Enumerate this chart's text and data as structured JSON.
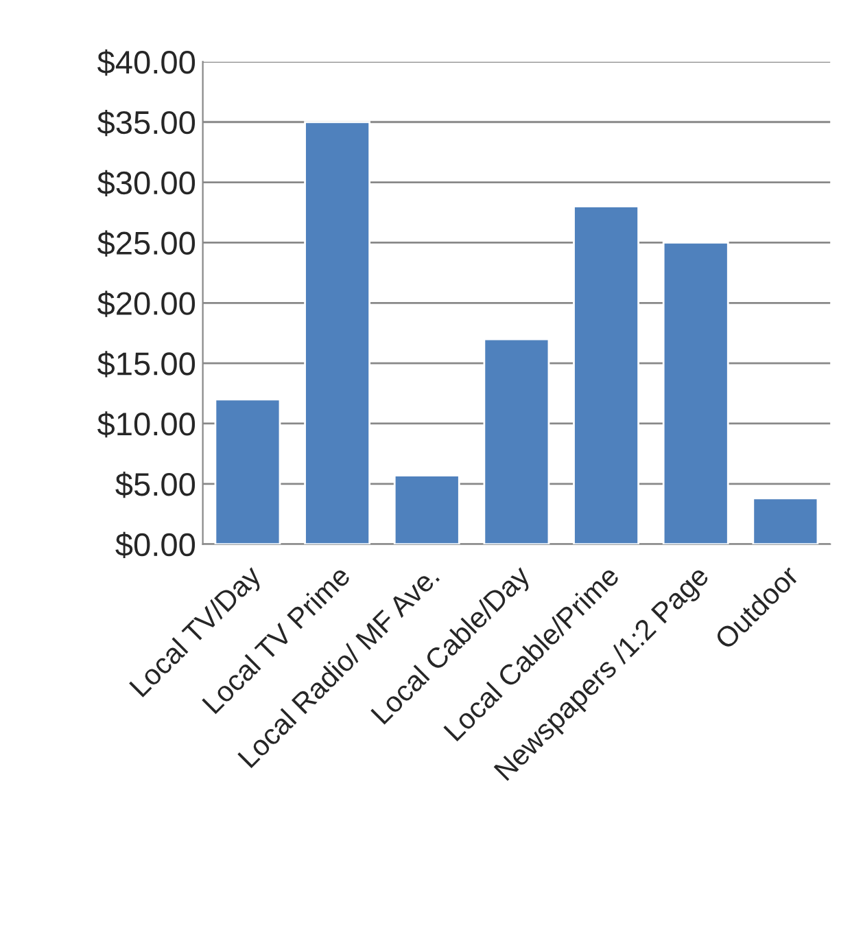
{
  "chart_data": {
    "type": "bar",
    "categories": [
      "Local TV/Day",
      "Local TV Prime",
      "Local Radio/ MF Ave.",
      "Local Cable/Day",
      "Local Cable/Prime",
      "Newspapers /1:2 Page",
      "Outdoor"
    ],
    "values": [
      12,
      35,
      5.7,
      17,
      28,
      25,
      3.8
    ],
    "color": "#4f81bd",
    "ylim": [
      0,
      40
    ],
    "yticks": [
      {
        "value": 0,
        "label": "$0.00"
      },
      {
        "value": 5,
        "label": "$5.00"
      },
      {
        "value": 10,
        "label": "$10.00"
      },
      {
        "value": 15,
        "label": "$15.00"
      },
      {
        "value": 20,
        "label": "$20.00"
      },
      {
        "value": 25,
        "label": "$25.00"
      },
      {
        "value": 30,
        "label": "$30.00"
      },
      {
        "value": 35,
        "label": "$35.00"
      },
      {
        "value": 40,
        "label": "$40.00"
      }
    ],
    "grid": "y",
    "legend": false
  }
}
